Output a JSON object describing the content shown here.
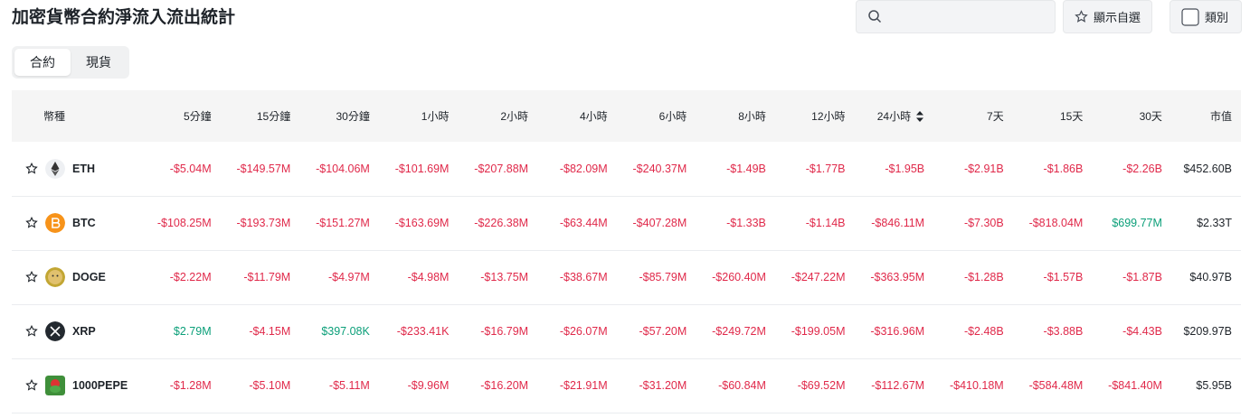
{
  "header": {
    "title": "加密貨幣合約淨流入流出統計",
    "favorites_button": "顯示自選",
    "category_button": "類別"
  },
  "tabs": [
    "合約",
    "現貨"
  ],
  "table": {
    "columns": [
      "幣種",
      "5分鐘",
      "15分鐘",
      "30分鐘",
      "1小時",
      "2小時",
      "4小時",
      "6小時",
      "8小時",
      "12小時",
      "24小時",
      "7天",
      "15天",
      "30天",
      "市值"
    ],
    "rows": [
      [
        "ETH",
        "-$5.04M",
        "-$149.57M",
        "-$104.06M",
        "-$101.69M",
        "-$207.88M",
        "-$82.09M",
        "-$240.37M",
        "-$1.49B",
        "-$1.77B",
        "-$1.95B",
        "-$2.91B",
        "-$1.86B",
        "-$2.26B",
        "$452.60B"
      ],
      [
        "BTC",
        "-$108.25M",
        "-$193.73M",
        "-$151.27M",
        "-$163.69M",
        "-$226.38M",
        "-$63.44M",
        "-$407.28M",
        "-$1.33B",
        "-$1.14B",
        "-$846.11M",
        "-$7.30B",
        "-$818.04M",
        "$699.77M",
        "$2.33T"
      ],
      [
        "DOGE",
        "-$2.22M",
        "-$11.79M",
        "-$4.97M",
        "-$4.98M",
        "-$13.75M",
        "-$38.67M",
        "-$85.79M",
        "-$260.40M",
        "-$247.22M",
        "-$363.95M",
        "-$1.28B",
        "-$1.57B",
        "-$1.87B",
        "$40.97B"
      ],
      [
        "XRP",
        "$2.79M",
        "-$4.15M",
        "$397.08K",
        "-$233.41K",
        "-$16.79M",
        "-$26.07M",
        "-$57.20M",
        "-$249.72M",
        "-$199.05M",
        "-$316.96M",
        "-$2.48B",
        "-$3.88B",
        "-$4.43B",
        "$209.97B"
      ],
      [
        "1000PEPE",
        "-$1.28M",
        "-$5.10M",
        "-$5.11M",
        "-$9.96M",
        "-$16.20M",
        "-$21.91M",
        "-$31.20M",
        "-$60.84M",
        "-$69.52M",
        "-$112.67M",
        "-$410.18M",
        "-$584.48M",
        "-$841.40M",
        "$5.95B"
      ]
    ]
  }
}
